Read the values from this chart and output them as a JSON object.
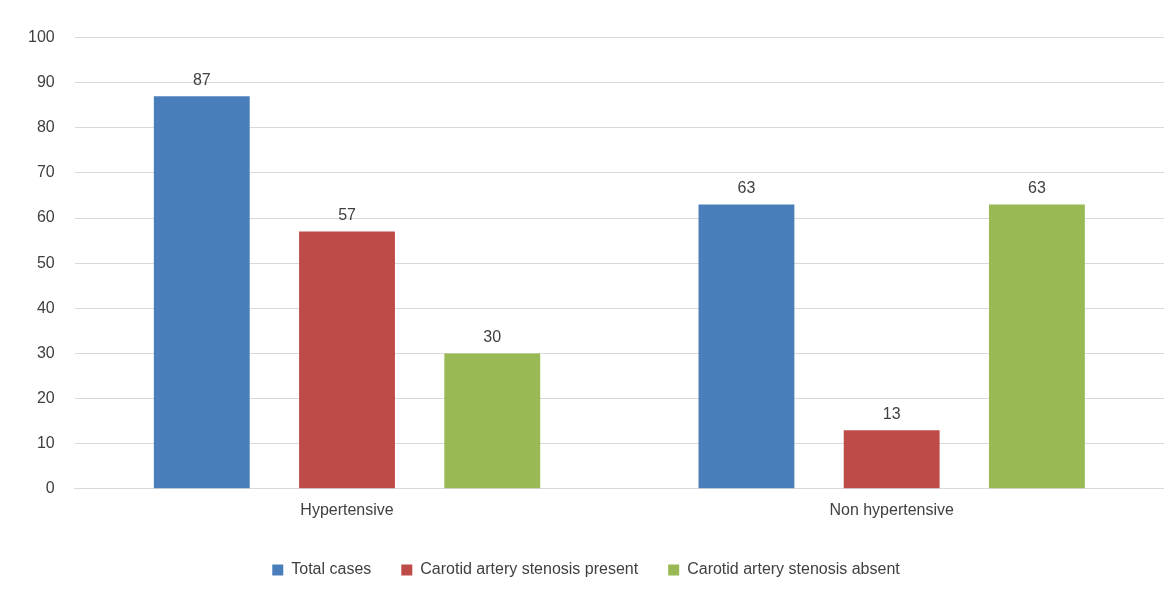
{
  "chart_data": {
    "type": "bar",
    "categories": [
      "Hypertensive",
      "Non hypertensive"
    ],
    "series": [
      {
        "name": "Total cases",
        "color": "#4a7ebb",
        "values": [
          87,
          63
        ]
      },
      {
        "name": "Carotid artery stenosis present",
        "color": "#be4b48",
        "values": [
          57,
          13
        ]
      },
      {
        "name": "Carotid artery stenosis absent",
        "color": "#98b954",
        "values": [
          30,
          63
        ]
      }
    ],
    "ylim": [
      0,
      100
    ],
    "yticks": [
      0,
      10,
      20,
      30,
      40,
      50,
      60,
      70,
      80,
      90,
      100
    ],
    "grid": "y",
    "legend": "bottom",
    "data_labels": true
  }
}
